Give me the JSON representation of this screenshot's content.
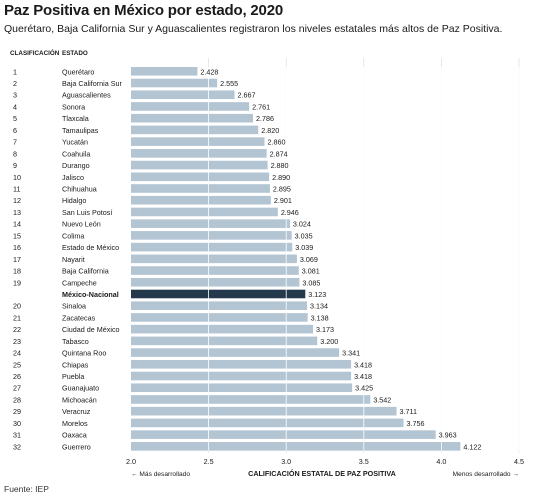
{
  "title": "Paz Positiva en México por estado, 2020",
  "subtitle": "Querétaro, Baja California Sur y Aguascalientes registraron los niveles estatales más altos de Paz Positiva.",
  "source": "Fuente: IEP",
  "colors": {
    "bar": "#b3c4d3",
    "highlight": "#243a4c",
    "grid": "#ffffff",
    "text": "#1a1a1a"
  },
  "chart_data": {
    "type": "bar",
    "orientation": "horizontal",
    "column_headers": {
      "rank": "CLASIFICACIÓN",
      "state": "ESTADO"
    },
    "xlabel": "CALIFICACIÓN ESTATAL DE PAZ POSITIVA",
    "xlim": [
      2.0,
      4.5
    ],
    "xticks": [
      "2.0",
      "2.5",
      "3.0",
      "3.5",
      "4.0",
      "4.5"
    ],
    "left_annotation": "← Más desarrollado",
    "right_annotation": "Menos desarrollado →",
    "rows": [
      {
        "rank": "1",
        "state": "Querétaro",
        "value": 2.428,
        "label": "2.428"
      },
      {
        "rank": "2",
        "state": "Baja California Sur",
        "value": 2.555,
        "label": "2.555"
      },
      {
        "rank": "3",
        "state": "Aguascalientes",
        "value": 2.667,
        "label": "2.667"
      },
      {
        "rank": "4",
        "state": "Sonora",
        "value": 2.761,
        "label": "2.761"
      },
      {
        "rank": "5",
        "state": "Tlaxcala",
        "value": 2.786,
        "label": "2.786"
      },
      {
        "rank": "6",
        "state": "Tamaulipas",
        "value": 2.82,
        "label": "2.820"
      },
      {
        "rank": "7",
        "state": "Yucatán",
        "value": 2.86,
        "label": "2.860"
      },
      {
        "rank": "8",
        "state": "Coahuila",
        "value": 2.874,
        "label": "2.874"
      },
      {
        "rank": "9",
        "state": "Durango",
        "value": 2.88,
        "label": "2.880"
      },
      {
        "rank": "10",
        "state": "Jalisco",
        "value": 2.89,
        "label": "2.890"
      },
      {
        "rank": "11",
        "state": "Chihuahua",
        "value": 2.895,
        "label": "2.895"
      },
      {
        "rank": "12",
        "state": "Hidalgo",
        "value": 2.901,
        "label": "2.901"
      },
      {
        "rank": "13",
        "state": "San Luis Potosí",
        "value": 2.946,
        "label": "2.946"
      },
      {
        "rank": "14",
        "state": "Nuevo León",
        "value": 3.024,
        "label": "3.024"
      },
      {
        "rank": "15",
        "state": "Colima",
        "value": 3.035,
        "label": "3.035"
      },
      {
        "rank": "16",
        "state": "Estado de México",
        "value": 3.039,
        "label": "3.039"
      },
      {
        "rank": "17",
        "state": "Nayarit",
        "value": 3.069,
        "label": "3.069"
      },
      {
        "rank": "18",
        "state": "Baja California",
        "value": 3.081,
        "label": "3.081"
      },
      {
        "rank": "19",
        "state": "Campeche",
        "value": 3.085,
        "label": "3.085"
      },
      {
        "rank": "",
        "state": "México-Nacional",
        "value": 3.123,
        "label": "3.123",
        "highlight": true
      },
      {
        "rank": "20",
        "state": "Sinaloa",
        "value": 3.134,
        "label": "3.134"
      },
      {
        "rank": "21",
        "state": "Zacatecas",
        "value": 3.138,
        "label": "3.138"
      },
      {
        "rank": "22",
        "state": "Ciudad de México",
        "value": 3.173,
        "label": "3.173"
      },
      {
        "rank": "23",
        "state": "Tabasco",
        "value": 3.2,
        "label": "3.200"
      },
      {
        "rank": "24",
        "state": "Quintana Roo",
        "value": 3.341,
        "label": "3.341"
      },
      {
        "rank": "25",
        "state": "Chiapas",
        "value": 3.418,
        "label": "3.418"
      },
      {
        "rank": "26",
        "state": "Puebla",
        "value": 3.418,
        "label": "3.418"
      },
      {
        "rank": "27",
        "state": "Guanajuato",
        "value": 3.425,
        "label": "3.425"
      },
      {
        "rank": "28",
        "state": "Michoacán",
        "value": 3.542,
        "label": "3.542"
      },
      {
        "rank": "29",
        "state": "Veracruz",
        "value": 3.711,
        "label": "3.711"
      },
      {
        "rank": "30",
        "state": "Morelos",
        "value": 3.756,
        "label": "3.756"
      },
      {
        "rank": "31",
        "state": "Oaxaca",
        "value": 3.963,
        "label": "3.963"
      },
      {
        "rank": "32",
        "state": "Guerrero",
        "value": 4.122,
        "label": "4.122"
      }
    ]
  }
}
